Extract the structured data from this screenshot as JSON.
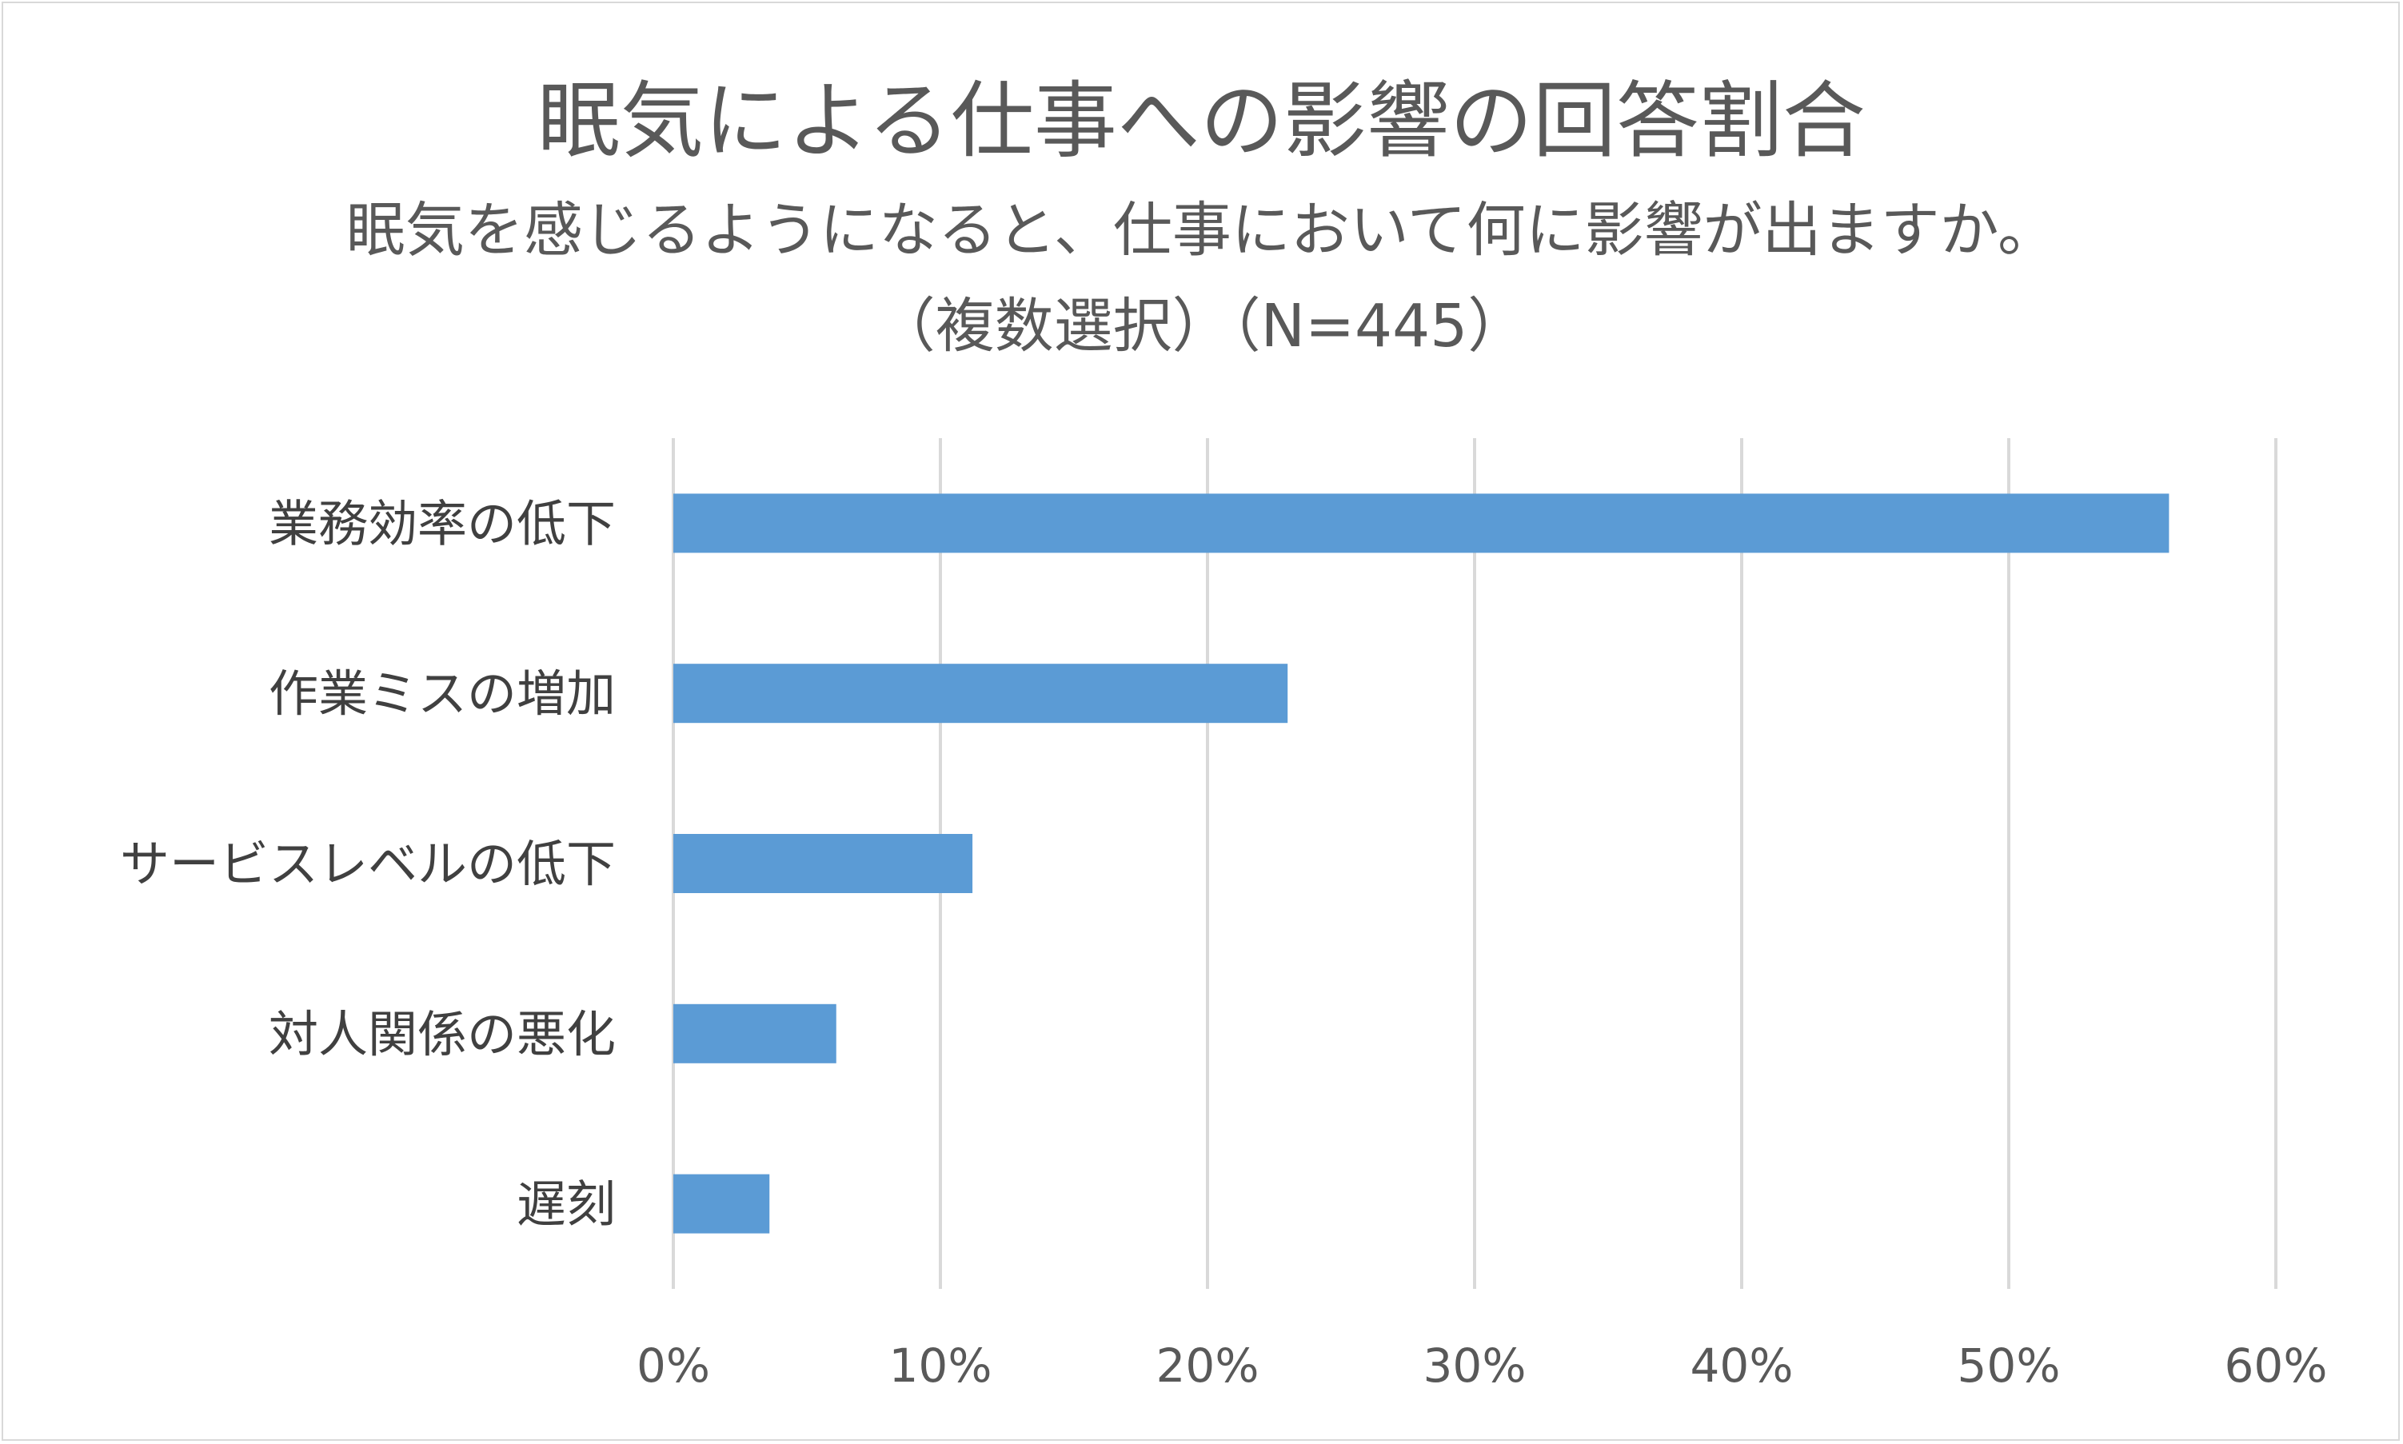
{
  "chart_data": {
    "type": "bar",
    "orientation": "horizontal",
    "title": "眠気による仕事への影響の回答割合",
    "subtitle": "眠気を感じるようになると、仕事において何に影響が出ますか。",
    "subtitle2": "（複数選択）（N=445）",
    "categories": [
      "業務効率の低下",
      "作業ミスの増加",
      "サービスレベルの低下",
      "対人関係の悪化",
      "遅刻"
    ],
    "values": [
      56,
      23,
      11.2,
      6.1,
      3.6
    ],
    "xlim": [
      0,
      60
    ],
    "x_ticks": [
      "0%",
      "10%",
      "20%",
      "30%",
      "40%",
      "50%",
      "60%"
    ],
    "grid": true,
    "legend": "none",
    "bar_color": "#5b9bd5",
    "grid_color": "#d9d9d9"
  }
}
